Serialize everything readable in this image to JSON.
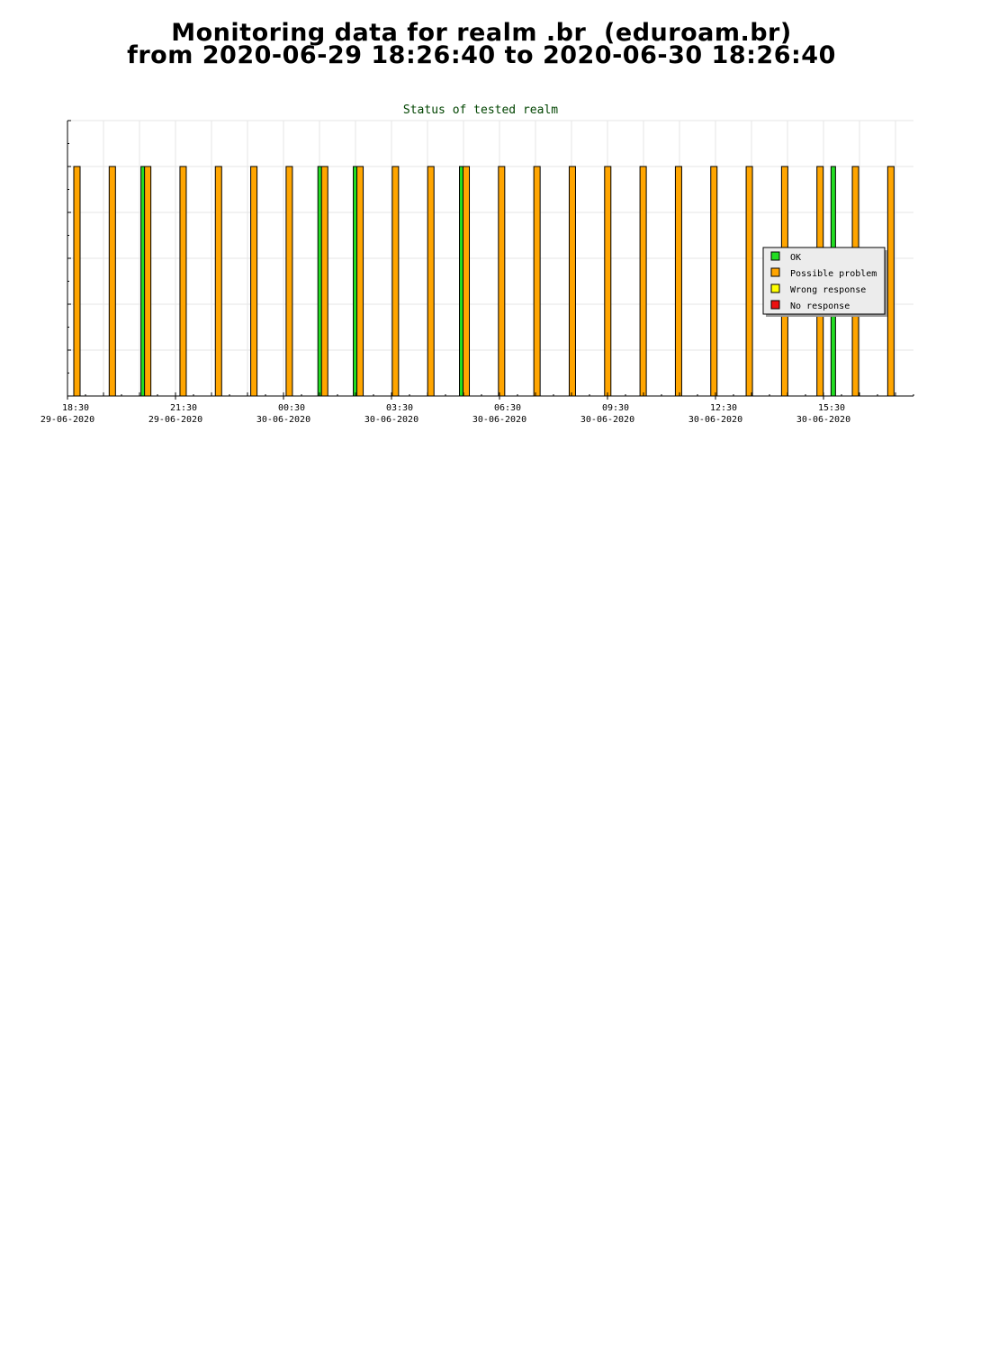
{
  "header": {
    "line1": "Monitoring data for realm .br  (eduroam.br)",
    "line2": "from 2020-06-29 18:26:40 to 2020-06-30 18:26:40"
  },
  "chart_data": {
    "type": "bar",
    "title": "Status of tested realm",
    "x_range": [
      "2020-06-29 18:30",
      "2020-06-30 18:00"
    ],
    "ylim": [
      0,
      6
    ],
    "grid": true,
    "legend_placement": "right",
    "x_ticks": [
      {
        "time": "18:30",
        "date": "29-06-2020"
      },
      {
        "time": "21:30",
        "date": "29-06-2020"
      },
      {
        "time": "00:30",
        "date": "30-06-2020"
      },
      {
        "time": "03:30",
        "date": "30-06-2020"
      },
      {
        "time": "06:30",
        "date": "30-06-2020"
      },
      {
        "time": "09:30",
        "date": "30-06-2020"
      },
      {
        "time": "12:30",
        "date": "30-06-2020"
      },
      {
        "time": "15:30",
        "date": "30-06-2020"
      }
    ],
    "series": [
      {
        "name": "OK",
        "color": "#22dd22",
        "x": [
          "2020-06-29 20:30",
          "2020-06-30 01:30",
          "2020-06-30 02:30",
          "2020-06-30 05:30",
          "2020-06-30 16:00"
        ],
        "values": [
          5,
          5,
          5,
          5,
          5
        ]
      },
      {
        "name": "Possible problem",
        "color": "#ffa500",
        "x": [
          "2020-06-29 18:30",
          "2020-06-29 19:30",
          "2020-06-29 20:30",
          "2020-06-29 21:30",
          "2020-06-29 22:30",
          "2020-06-29 23:30",
          "2020-06-30 00:30",
          "2020-06-30 01:30",
          "2020-06-30 02:30",
          "2020-06-30 03:30",
          "2020-06-30 04:30",
          "2020-06-30 05:30",
          "2020-06-30 06:30",
          "2020-06-30 07:30",
          "2020-06-30 08:30",
          "2020-06-30 09:30",
          "2020-06-30 10:30",
          "2020-06-30 11:30",
          "2020-06-30 12:30",
          "2020-06-30 13:30",
          "2020-06-30 14:30",
          "2020-06-30 15:30",
          "2020-06-30 16:30",
          "2020-06-30 17:30"
        ],
        "values": [
          5,
          5,
          5,
          5,
          5,
          5,
          5,
          5,
          5,
          5,
          5,
          5,
          5,
          5,
          5,
          5,
          5,
          5,
          5,
          5,
          5,
          5,
          5,
          5
        ]
      },
      {
        "name": "Wrong response",
        "color": "#ffff00",
        "x": [],
        "values": []
      },
      {
        "name": "No response",
        "color": "#ee1111",
        "x": [],
        "values": []
      }
    ]
  }
}
